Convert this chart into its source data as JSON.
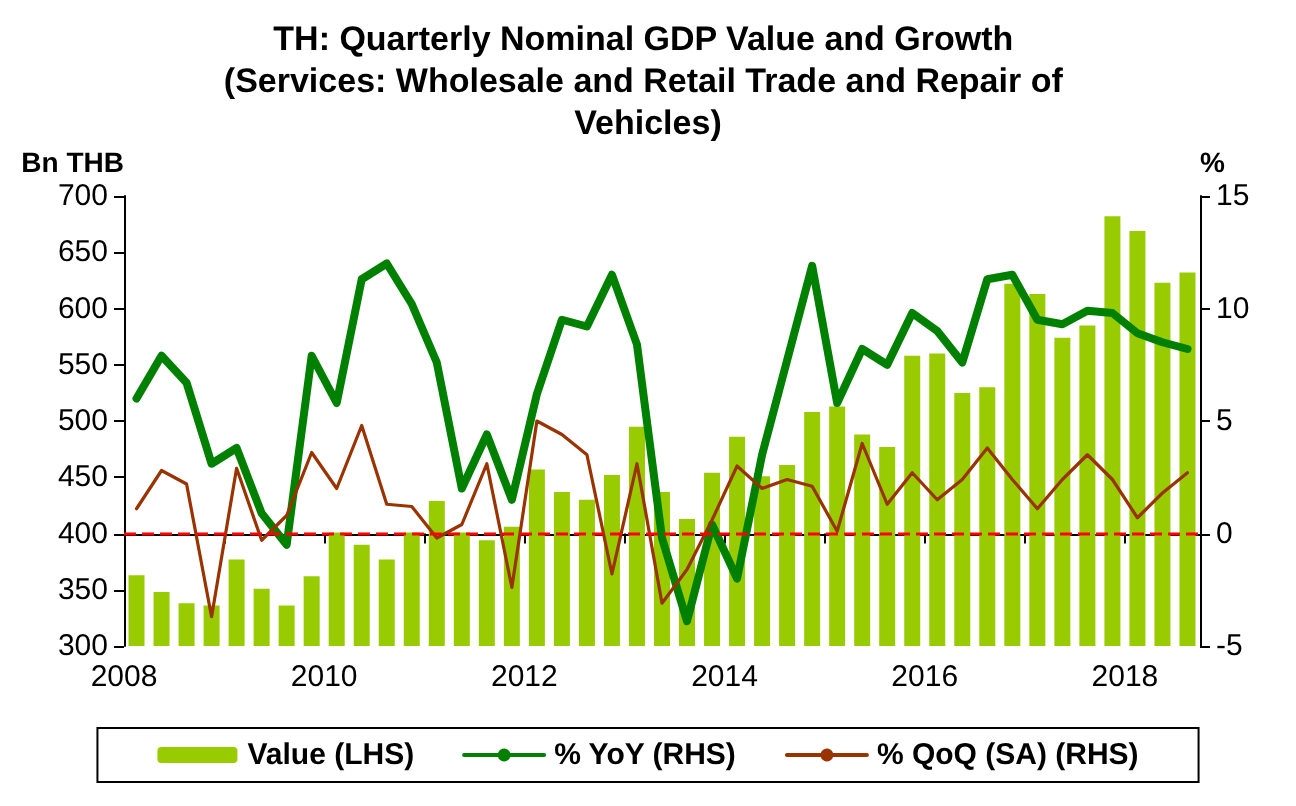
{
  "chart_data": {
    "type": "bar",
    "title": "TH: Quarterly Nominal GDP Value and Growth (Services: Wholesale and Retail Trade and Repair of Vehicles)",
    "ylabel": "Bn THB",
    "y2label": "%",
    "x": [
      2008.125,
      2008.375,
      2008.625,
      2008.875,
      2009.125,
      2009.375,
      2009.625,
      2009.875,
      2010.125,
      2010.375,
      2010.625,
      2010.875,
      2011.125,
      2011.375,
      2011.625,
      2011.875,
      2012.125,
      2012.375,
      2012.625,
      2012.875,
      2013.125,
      2013.375,
      2013.625,
      2013.875,
      2014.125,
      2014.375,
      2014.625,
      2014.875,
      2015.125,
      2015.375,
      2015.625,
      2015.875,
      2016.125,
      2016.375,
      2016.625,
      2016.875,
      2017.125,
      2017.375,
      2017.625,
      2017.875,
      2018.125,
      2018.375,
      2018.625
    ],
    "series": [
      {
        "name": "Value (LHS)",
        "color": "#99cc00",
        "values": [
          363,
          348,
          338,
          336,
          377,
          351,
          336,
          362,
          401,
          390,
          377,
          401,
          429,
          401,
          394,
          406,
          457,
          437,
          430,
          452,
          495,
          437,
          413,
          454,
          486,
          451,
          461,
          508,
          513,
          488,
          477,
          558,
          560,
          525,
          530,
          622,
          613,
          574,
          585,
          682,
          669,
          623,
          632
        ]
      },
      {
        "name": "% YoY (RHS)",
        "type": "line",
        "axis": "y2",
        "color": "#008000",
        "values": [
          6.0,
          7.9,
          6.7,
          3.1,
          3.8,
          0.9,
          -0.5,
          7.9,
          5.8,
          11.3,
          12.0,
          10.2,
          7.6,
          2.0,
          4.4,
          1.5,
          6.2,
          9.5,
          9.2,
          11.5,
          8.4,
          -0.2,
          -3.9,
          0.4,
          -2.0,
          3.5,
          7.7,
          11.9,
          5.8,
          8.2,
          7.5,
          9.8,
          9.0,
          7.6,
          11.3,
          11.5,
          9.5,
          9.3,
          9.9,
          9.8,
          8.9,
          8.5,
          8.2
        ]
      },
      {
        "name": "% QoQ (SA) (RHS)",
        "type": "line",
        "axis": "y2",
        "color": "#993300",
        "values": [
          1.1,
          2.8,
          2.2,
          -3.7,
          2.9,
          -0.3,
          0.8,
          3.6,
          2.0,
          4.8,
          1.3,
          1.2,
          -0.2,
          0.4,
          3.1,
          -2.4,
          5.0,
          4.4,
          3.5,
          -1.8,
          3.1,
          -3.1,
          -1.6,
          0.6,
          3.0,
          2.0,
          2.4,
          2.1,
          0.1,
          4.0,
          1.3,
          2.7,
          1.5,
          2.4,
          3.8,
          2.4,
          1.1,
          2.4,
          3.5,
          2.4,
          0.7,
          1.8,
          2.7
        ]
      }
    ],
    "xlim": [
      2008,
      2018.75
    ],
    "xticks": [
      2008,
      {
        "value": 2009,
        "label": null
      },
      2010,
      {
        "value": 2011,
        "label": null
      },
      2012,
      {
        "value": 2013,
        "label": null
      },
      2014,
      {
        "value": 2015,
        "label": null
      },
      2016,
      {
        "value": 2017,
        "label": null
      },
      2018
    ],
    "ylim": [
      300,
      700
    ],
    "yticks": [
      300,
      350,
      400,
      450,
      500,
      550,
      600,
      650,
      700
    ],
    "y2lim": [
      -5,
      15
    ],
    "y2ticks": [
      -5,
      0,
      5,
      10,
      15
    ],
    "ref_lines": [
      {
        "axis": "y2",
        "value": 0,
        "label": null,
        "color": "#ff0000",
        "line_style": "dashed"
      }
    ],
    "grid": false,
    "legend": "bottom",
    "marker": "none"
  }
}
